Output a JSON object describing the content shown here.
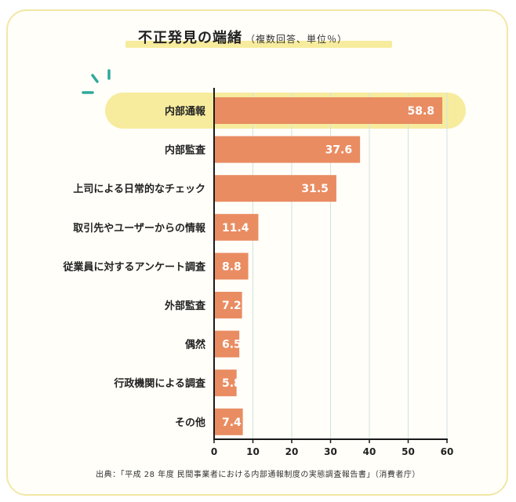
{
  "title": "不正発見の端緒",
  "subtitle": "（複数回答、単位％）",
  "source": "出典：「平成 28 年度 民間事業者における内部通報制度の実態調査報告書」（消費者庁）",
  "colors": {
    "bar": "#e98c62",
    "highlight": "#f7ec9e",
    "grid": "#cfe3e1",
    "accent": "#2fa99a"
  },
  "chart_data": {
    "type": "bar",
    "orientation": "horizontal",
    "categories": [
      "内部通報",
      "内部監査",
      "上司による日常的なチェック",
      "取引先やユーザーからの情報",
      "従業員に対するアンケート調査",
      "外部監査",
      "偶然",
      "行政機関による調査",
      "その他"
    ],
    "values": [
      58.8,
      37.6,
      31.5,
      11.4,
      8.8,
      7.2,
      6.5,
      5.8,
      7.4
    ],
    "value_labels": [
      "58.8",
      "37.6",
      "31.5",
      "11.4",
      "8.8",
      "7.2",
      "6.5",
      "5.8",
      "7.4"
    ],
    "xlim": [
      0,
      60
    ],
    "xticks": [
      0,
      10,
      20,
      30,
      40,
      50,
      60
    ],
    "grid": true,
    "highlighted_category": "内部通報"
  }
}
